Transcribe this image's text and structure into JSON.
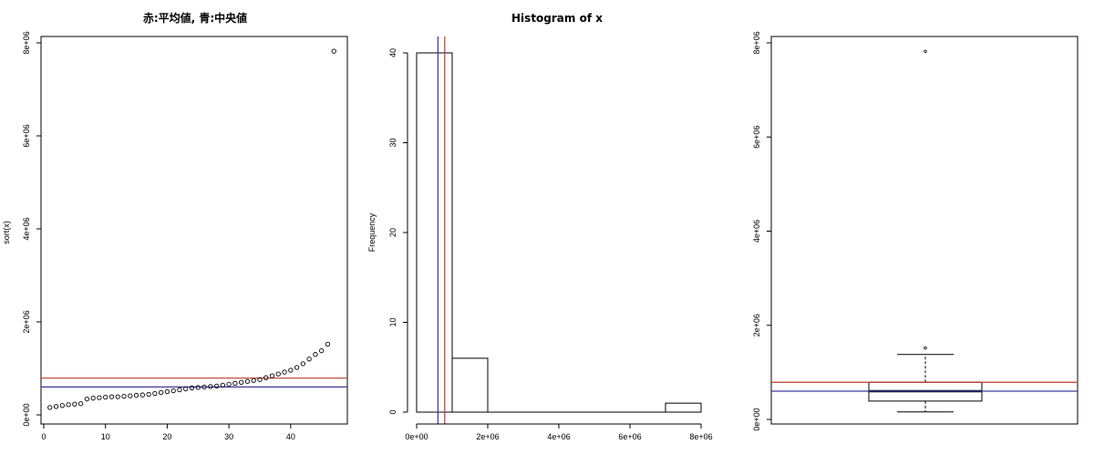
{
  "chart_data": [
    {
      "type": "scatter",
      "title": "赤:平均値, 青:中央値",
      "xlabel": "",
      "ylabel": "sort(x)",
      "xlim": [
        0,
        48
      ],
      "ylim": [
        0,
        8000000
      ],
      "x_ticks": [
        0,
        10,
        20,
        30,
        40
      ],
      "y_ticks": [
        0,
        2000000,
        4000000,
        6000000,
        8000000
      ],
      "x_tick_labels": [
        "0",
        "10",
        "20",
        "30",
        "40"
      ],
      "y_tick_labels": [
        "0e+00",
        "2e+06",
        "4e+06",
        "6e+06",
        "8e+06"
      ],
      "x": [
        1,
        2,
        3,
        4,
        5,
        6,
        7,
        8,
        9,
        10,
        11,
        12,
        13,
        14,
        15,
        16,
        17,
        18,
        19,
        20,
        21,
        22,
        23,
        24,
        25,
        26,
        27,
        28,
        29,
        30,
        31,
        32,
        33,
        34,
        35,
        36,
        37,
        38,
        39,
        40,
        41,
        42,
        43,
        44,
        45,
        46,
        47
      ],
      "y": [
        160000,
        180000,
        200000,
        220000,
        230000,
        240000,
        340000,
        360000,
        370000,
        380000,
        390000,
        390000,
        400000,
        410000,
        420000,
        430000,
        440000,
        460000,
        480000,
        500000,
        520000,
        540000,
        560000,
        580000,
        590000,
        600000,
        610000,
        620000,
        640000,
        660000,
        680000,
        700000,
        720000,
        740000,
        760000,
        800000,
        840000,
        880000,
        920000,
        960000,
        1020000,
        1100000,
        1200000,
        1300000,
        1380000,
        1520000,
        7820000
      ],
      "reference_lines": [
        {
          "orientation": "horizontal",
          "value": 790000,
          "color": "#c0392b"
        },
        {
          "orientation": "horizontal",
          "value": 600000,
          "color": "#3a3aa0"
        }
      ]
    },
    {
      "type": "bar",
      "title": "Histogram of x",
      "xlabel": "",
      "ylabel": "Frequency",
      "xlim": [
        0,
        8000000
      ],
      "ylim": [
        0,
        41
      ],
      "x_ticks": [
        0,
        2000000,
        4000000,
        6000000,
        8000000
      ],
      "y_ticks": [
        0,
        10,
        20,
        30,
        40
      ],
      "x_tick_labels": [
        "0e+00",
        "2e+06",
        "4e+06",
        "6e+06",
        "8e+06"
      ],
      "y_tick_labels": [
        "0",
        "10",
        "20",
        "30",
        "40"
      ],
      "bins": [
        {
          "x0": 0,
          "x1": 1000000,
          "count": 40
        },
        {
          "x0": 1000000,
          "x1": 2000000,
          "count": 6
        },
        {
          "x0": 2000000,
          "x1": 3000000,
          "count": 0
        },
        {
          "x0": 3000000,
          "x1": 4000000,
          "count": 0
        },
        {
          "x0": 4000000,
          "x1": 5000000,
          "count": 0
        },
        {
          "x0": 5000000,
          "x1": 6000000,
          "count": 0
        },
        {
          "x0": 6000000,
          "x1": 7000000,
          "count": 0
        },
        {
          "x0": 7000000,
          "x1": 8000000,
          "count": 1
        }
      ],
      "reference_lines": [
        {
          "orientation": "vertical",
          "value": 790000,
          "color": "#c0392b"
        },
        {
          "orientation": "vertical",
          "value": 600000,
          "color": "#3a3aa0"
        }
      ]
    },
    {
      "type": "boxplot",
      "title": "",
      "xlabel": "",
      "ylabel": "",
      "ylim": [
        0,
        8000000
      ],
      "y_ticks": [
        0,
        2000000,
        4000000,
        6000000,
        8000000
      ],
      "y_tick_labels": [
        "0e+00",
        "2e+06",
        "4e+06",
        "6e+06",
        "8e+06"
      ],
      "box": {
        "whisker_low": 160000,
        "q1": 390000,
        "median": 600000,
        "q3": 790000,
        "whisker_high": 1380000
      },
      "outliers": [
        1520000,
        7820000
      ],
      "reference_lines": [
        {
          "orientation": "horizontal",
          "value": 790000,
          "color": "#c0392b"
        },
        {
          "orientation": "horizontal",
          "value": 600000,
          "color": "#3a3aa0"
        }
      ]
    }
  ]
}
